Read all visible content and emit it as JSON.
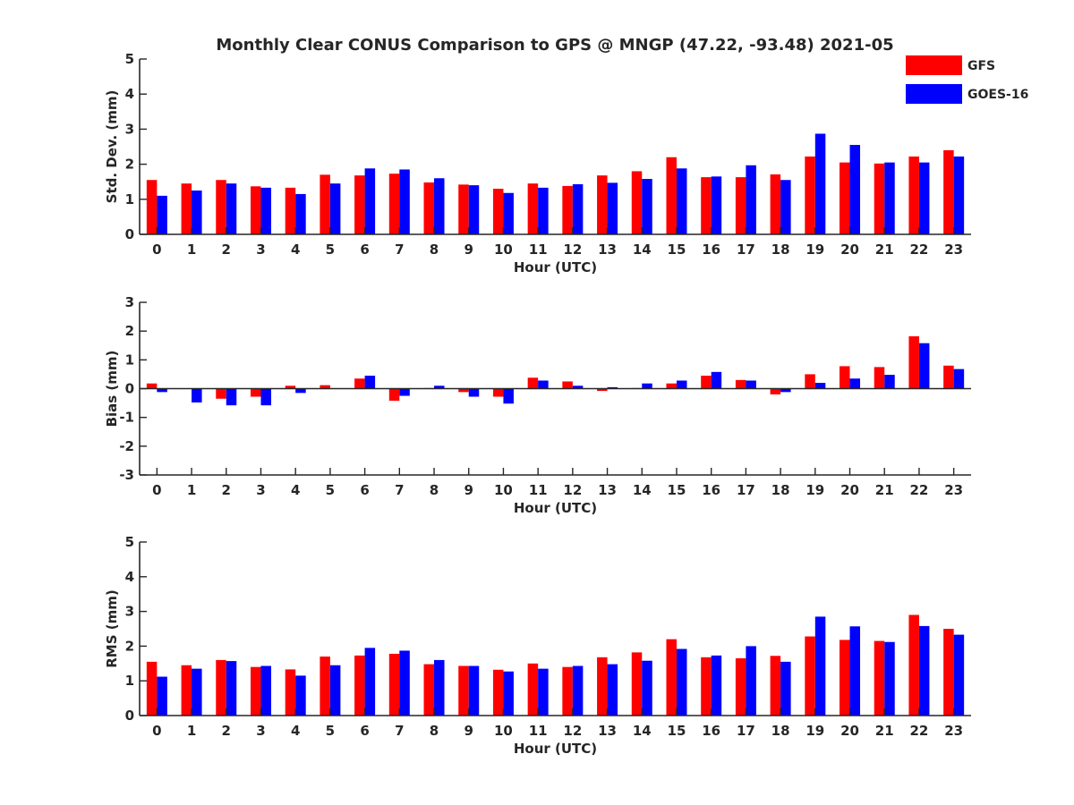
{
  "title": "Monthly Clear CONUS Comparison to GPS @ MNGP (47.22, -93.48) 2021-05",
  "colors": {
    "gfs": "#ff0000",
    "goes": "#0000ff",
    "axis": "#262626"
  },
  "legend": [
    {
      "name": "GFS",
      "color": "#ff0000"
    },
    {
      "name": "GOES-16",
      "color": "#0000ff"
    }
  ],
  "chart_data": [
    {
      "type": "bar",
      "ylabel": "Std. Dev. (mm)",
      "xlabel": "Hour (UTC)",
      "ylim": [
        0,
        5
      ],
      "yticks": [
        "0",
        "1",
        "2",
        "3",
        "4",
        "5"
      ],
      "categories": [
        "0",
        "1",
        "2",
        "3",
        "4",
        "5",
        "6",
        "7",
        "8",
        "9",
        "10",
        "11",
        "12",
        "13",
        "14",
        "15",
        "16",
        "17",
        "18",
        "19",
        "20",
        "21",
        "22",
        "23"
      ],
      "series": [
        {
          "name": "GFS",
          "values": [
            1.55,
            1.45,
            1.55,
            1.37,
            1.33,
            1.7,
            1.68,
            1.73,
            1.48,
            1.42,
            1.3,
            1.45,
            1.38,
            1.68,
            1.8,
            2.2,
            1.63,
            1.63,
            1.71,
            2.22,
            2.05,
            2.02,
            2.22,
            2.4
          ]
        },
        {
          "name": "GOES-16",
          "values": [
            1.1,
            1.25,
            1.45,
            1.33,
            1.15,
            1.45,
            1.88,
            1.85,
            1.6,
            1.4,
            1.18,
            1.33,
            1.43,
            1.47,
            1.58,
            1.88,
            1.65,
            1.97,
            1.55,
            2.87,
            2.55,
            2.05,
            2.05,
            2.22
          ]
        }
      ]
    },
    {
      "type": "bar",
      "ylabel": "Bias (mm)",
      "xlabel": "Hour (UTC)",
      "ylim": [
        -3,
        3
      ],
      "yticks": [
        "-3",
        "-2",
        "-1",
        "0",
        "1",
        "2",
        "3"
      ],
      "categories": [
        "0",
        "1",
        "2",
        "3",
        "4",
        "5",
        "6",
        "7",
        "8",
        "9",
        "10",
        "11",
        "12",
        "13",
        "14",
        "15",
        "16",
        "17",
        "18",
        "19",
        "20",
        "21",
        "22",
        "23"
      ],
      "series": [
        {
          "name": "GFS",
          "values": [
            0.18,
            0.0,
            -0.35,
            -0.28,
            0.1,
            0.12,
            0.35,
            -0.42,
            0.02,
            -0.12,
            -0.28,
            0.38,
            0.25,
            -0.08,
            0.02,
            0.18,
            0.45,
            0.3,
            -0.2,
            0.5,
            0.78,
            0.75,
            1.82,
            0.8
          ]
        },
        {
          "name": "GOES-16",
          "values": [
            -0.12,
            -0.48,
            -0.58,
            -0.58,
            -0.15,
            0.0,
            0.45,
            -0.25,
            0.1,
            -0.28,
            -0.52,
            0.28,
            0.1,
            0.05,
            0.18,
            0.28,
            0.58,
            0.28,
            -0.12,
            0.2,
            0.35,
            0.48,
            1.58,
            0.68
          ]
        }
      ]
    },
    {
      "type": "bar",
      "ylabel": "RMS (mm)",
      "xlabel": "Hour (UTC)",
      "ylim": [
        0,
        5
      ],
      "yticks": [
        "0",
        "1",
        "2",
        "3",
        "4",
        "5"
      ],
      "categories": [
        "0",
        "1",
        "2",
        "3",
        "4",
        "5",
        "6",
        "7",
        "8",
        "9",
        "10",
        "11",
        "12",
        "13",
        "14",
        "15",
        "16",
        "17",
        "18",
        "19",
        "20",
        "21",
        "22",
        "23"
      ],
      "series": [
        {
          "name": "GFS",
          "values": [
            1.55,
            1.45,
            1.6,
            1.4,
            1.33,
            1.7,
            1.73,
            1.78,
            1.48,
            1.43,
            1.32,
            1.5,
            1.4,
            1.68,
            1.82,
            2.2,
            1.68,
            1.65,
            1.72,
            2.28,
            2.18,
            2.15,
            2.9,
            2.5
          ]
        },
        {
          "name": "GOES-16",
          "values": [
            1.12,
            1.35,
            1.57,
            1.43,
            1.15,
            1.45,
            1.95,
            1.87,
            1.6,
            1.43,
            1.27,
            1.35,
            1.43,
            1.48,
            1.58,
            1.92,
            1.73,
            2.0,
            1.55,
            2.85,
            2.57,
            2.12,
            2.58,
            2.33
          ]
        }
      ]
    }
  ]
}
